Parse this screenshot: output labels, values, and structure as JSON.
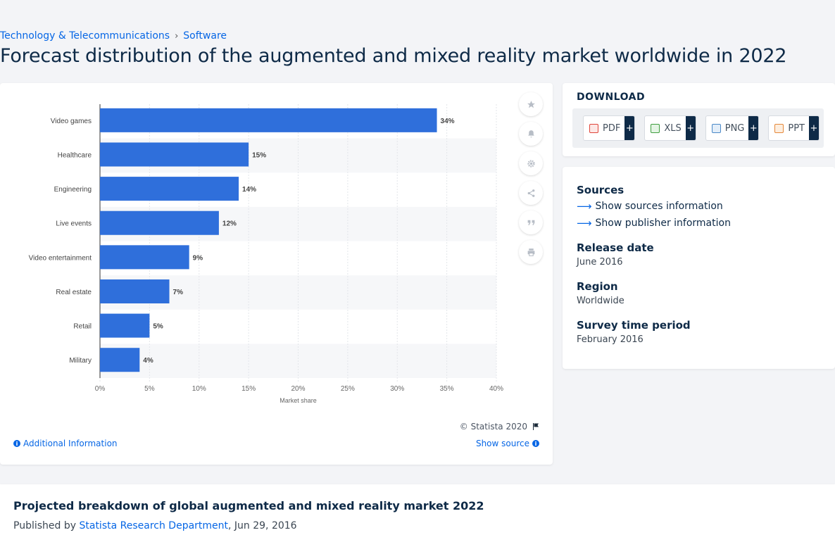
{
  "breadcrumb": {
    "items": [
      "Technology & Telecommunications",
      "Software"
    ],
    "separator": "›"
  },
  "page_title": "Forecast distribution of the augmented and mixed reality market worldwide in 2022",
  "chart_data": {
    "type": "bar",
    "orientation": "horizontal",
    "categories": [
      "Video games",
      "Healthcare",
      "Engineering",
      "Live events",
      "Video entertainment",
      "Real estate",
      "Retail",
      "Military"
    ],
    "values": [
      34,
      15,
      14,
      12,
      9,
      7,
      5,
      4
    ],
    "value_labels": [
      "34%",
      "15%",
      "14%",
      "12%",
      "9%",
      "7%",
      "5%",
      "4%"
    ],
    "xlabel": "Market share",
    "ylabel": "",
    "xlim": [
      0,
      40
    ],
    "x_ticks": [
      "0%",
      "5%",
      "10%",
      "15%",
      "20%",
      "25%",
      "30%",
      "35%",
      "40%"
    ],
    "grid": true,
    "bar_color": "#2f6fdb"
  },
  "chart_tools": [
    {
      "icon": "star-icon"
    },
    {
      "icon": "bell-icon"
    },
    {
      "icon": "gear-icon"
    },
    {
      "icon": "share-icon"
    },
    {
      "icon": "quote-icon"
    },
    {
      "icon": "print-icon"
    }
  ],
  "copyright": "© Statista 2020",
  "additional_info": "Additional Information",
  "show_source": "Show source",
  "download": {
    "title": "DOWNLOAD",
    "buttons": [
      {
        "label": "PDF",
        "color": "#e0453a"
      },
      {
        "label": "XLS",
        "color": "#3f9e3f"
      },
      {
        "label": "PNG",
        "color": "#4a89c8"
      },
      {
        "label": "PPT",
        "color": "#e5883a"
      }
    ],
    "plus": "+"
  },
  "info": {
    "sources_label": "Sources",
    "show_sources": "Show sources information",
    "show_publisher": "Show publisher information",
    "release_label": "Release date",
    "release_value": "June 2016",
    "region_label": "Region",
    "region_value": "Worldwide",
    "survey_label": "Survey time period",
    "survey_value": "February 2016"
  },
  "bottom": {
    "title": "Projected breakdown of global augmented and mixed reality market 2022",
    "published_by": "Published by",
    "publisher": "Statista Research Department",
    "date": ", Jun 29, 2016"
  },
  "colors": {
    "accent": "#0666e5",
    "navy": "#0e2a47"
  }
}
